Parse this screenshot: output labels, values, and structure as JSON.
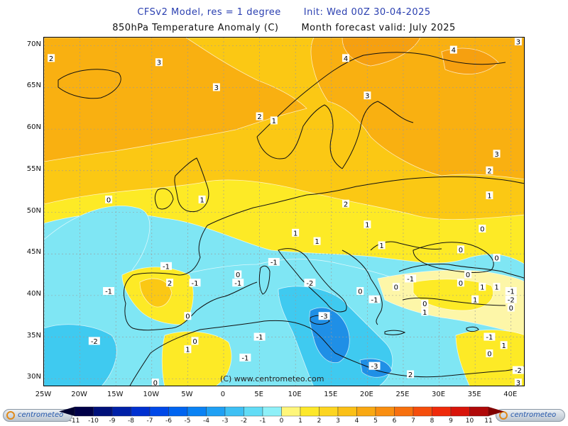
{
  "title_line1": {
    "model": "CFSv2 Model, res = 1 degree",
    "init": "Init: Wed 00Z 30-04-2025"
  },
  "title_line2": {
    "variable": "850hPa Temperature Anomaly (C)",
    "valid": "Month forecast valid: July 2025"
  },
  "watermark": "(C) www.centrometeo.com",
  "logo_text": "centrometeo",
  "map": {
    "lon_range": [
      -25,
      42
    ],
    "lat_range": [
      29,
      71
    ],
    "lat_labels": [
      "30N",
      "35N",
      "40N",
      "45N",
      "50N",
      "55N",
      "60N",
      "65N",
      "70N"
    ],
    "lat_values": [
      30,
      35,
      40,
      45,
      50,
      55,
      60,
      65,
      70
    ],
    "lon_labels": [
      "25W",
      "20W",
      "15W",
      "10W",
      "5W",
      "0",
      "5E",
      "10E",
      "15E",
      "20E",
      "25E",
      "30E",
      "35E",
      "40E"
    ],
    "lon_values": [
      -25,
      -20,
      -15,
      -10,
      -5,
      0,
      5,
      10,
      15,
      20,
      25,
      30,
      35,
      40
    ],
    "region_colors": {
      "anomaly_plus3": "#f9b011",
      "anomaly_plus2": "#fbc814",
      "anomaly_plus1": "#fdea26",
      "anomaly_0": "#fdf6a8",
      "anomaly_minus1": "#7fe6f4",
      "anomaly_minus2": "#3fcaf0",
      "anomaly_minus3": "#1f8fe6",
      "anomaly_minus4": "#1f5fd0"
    },
    "contour_labels": [
      {
        "text": "3",
        "lon": -9,
        "lat": 68
      },
      {
        "text": "2",
        "lon": -24,
        "lat": 68.5
      },
      {
        "text": "3",
        "lon": -1,
        "lat": 65
      },
      {
        "text": "2",
        "lon": 5,
        "lat": 61.5
      },
      {
        "text": "1",
        "lon": 7,
        "lat": 61
      },
      {
        "text": "4",
        "lon": 17,
        "lat": 68.5
      },
      {
        "text": "3",
        "lon": 20,
        "lat": 64
      },
      {
        "text": "4",
        "lon": 32,
        "lat": 69.5
      },
      {
        "text": "3",
        "lon": 41,
        "lat": 70.5
      },
      {
        "text": "3",
        "lon": 38,
        "lat": 57
      },
      {
        "text": "2",
        "lon": 37,
        "lat": 55
      },
      {
        "text": "1",
        "lon": 37,
        "lat": 52
      },
      {
        "text": "2",
        "lon": 17,
        "lat": 51
      },
      {
        "text": "1",
        "lon": -3,
        "lat": 51.5
      },
      {
        "text": "0",
        "lon": -16,
        "lat": 51.5
      },
      {
        "text": "1",
        "lon": 20,
        "lat": 48.5
      },
      {
        "text": "0",
        "lon": 36,
        "lat": 48
      },
      {
        "text": "1",
        "lon": 10,
        "lat": 47.5
      },
      {
        "text": "1",
        "lon": 13,
        "lat": 46.5
      },
      {
        "text": "1",
        "lon": 22,
        "lat": 46
      },
      {
        "text": "0",
        "lon": 33,
        "lat": 45.5
      },
      {
        "text": "0",
        "lon": 38,
        "lat": 44.5
      },
      {
        "text": "0",
        "lon": 34,
        "lat": 42.5
      },
      {
        "text": "-1",
        "lon": 7,
        "lat": 44
      },
      {
        "text": "-1",
        "lon": -8,
        "lat": 43.5
      },
      {
        "text": "-1",
        "lon": -16,
        "lat": 40.5
      },
      {
        "text": "2",
        "lon": -7.5,
        "lat": 41.5
      },
      {
        "text": "-1",
        "lon": -4,
        "lat": 41.5
      },
      {
        "text": "0",
        "lon": 2,
        "lat": 42.5
      },
      {
        "text": "-1",
        "lon": 2,
        "lat": 41.5
      },
      {
        "text": "-2",
        "lon": 12,
        "lat": 41.5
      },
      {
        "text": "-1",
        "lon": 26,
        "lat": 42
      },
      {
        "text": "0",
        "lon": 24,
        "lat": 41
      },
      {
        "text": "0",
        "lon": 19,
        "lat": 40.5
      },
      {
        "text": "-1",
        "lon": 21,
        "lat": 39.5
      },
      {
        "text": "0",
        "lon": 28,
        "lat": 39
      },
      {
        "text": "0",
        "lon": 33,
        "lat": 41.5
      },
      {
        "text": "1",
        "lon": 36,
        "lat": 41
      },
      {
        "text": "1",
        "lon": 38,
        "lat": 41
      },
      {
        "text": "-1",
        "lon": 40,
        "lat": 40.5
      },
      {
        "text": "-2",
        "lon": 40,
        "lat": 39.5
      },
      {
        "text": "0",
        "lon": 40,
        "lat": 38.5
      },
      {
        "text": "1",
        "lon": 35,
        "lat": 39.5
      },
      {
        "text": "1",
        "lon": 28,
        "lat": 38
      },
      {
        "text": "0",
        "lon": -5,
        "lat": 37.5
      },
      {
        "text": "-3",
        "lon": 14,
        "lat": 37.5
      },
      {
        "text": "-1",
        "lon": 5,
        "lat": 35
      },
      {
        "text": "0",
        "lon": -4,
        "lat": 34.5
      },
      {
        "text": "1",
        "lon": -5,
        "lat": 33.5
      },
      {
        "text": "-1",
        "lon": 3,
        "lat": 32.5
      },
      {
        "text": "-2",
        "lon": -18,
        "lat": 34.5
      },
      {
        "text": "-3",
        "lon": 21,
        "lat": 31.5
      },
      {
        "text": "2",
        "lon": 26,
        "lat": 30.5
      },
      {
        "text": "-1",
        "lon": 37,
        "lat": 35
      },
      {
        "text": "1",
        "lon": 39,
        "lat": 34
      },
      {
        "text": "0",
        "lon": 37,
        "lat": 33
      },
      {
        "text": "-2",
        "lon": 41,
        "lat": 31
      },
      {
        "text": "3",
        "lon": 41,
        "lat": 29.5
      },
      {
        "text": "0",
        "lon": -9.5,
        "lat": 29.5
      }
    ]
  },
  "colorbar": {
    "labels": [
      "-11",
      "-10",
      "-9",
      "-8",
      "-7",
      "-6",
      "-5",
      "-4",
      "-3",
      "-2",
      "-1",
      "0",
      "1",
      "2",
      "3",
      "4",
      "5",
      "6",
      "7",
      "8",
      "9",
      "10",
      "11"
    ],
    "colors": [
      "#000048",
      "#00107a",
      "#0020a8",
      "#0030d0",
      "#0048e8",
      "#0064f0",
      "#0a82f4",
      "#1fa0f4",
      "#3ec0f4",
      "#62dcf6",
      "#8ef0f8",
      "#fff67a",
      "#fde82a",
      "#fdd520",
      "#fbc016",
      "#f9a812",
      "#f98e10",
      "#f7700e",
      "#f54e0c",
      "#ef2a0a",
      "#d8140a",
      "#b00808"
    ]
  }
}
